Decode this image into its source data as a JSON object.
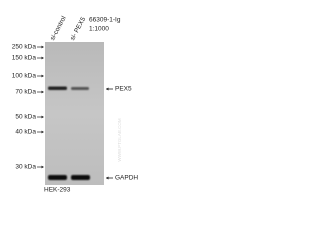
{
  "markers": [
    "250 kDa",
    "150 kDa",
    "100 kDa",
    "70 kDa",
    "50 kDa",
    "40 kDa",
    "30 kDa"
  ],
  "lanes": [
    "si-control",
    "si- PEX5"
  ],
  "antibody": [
    "66309-1-Ig",
    "1:1000"
  ],
  "bands": [
    "PEX5",
    "GAPDH"
  ],
  "cell_line": "HEK-293",
  "watermark": "WWW.PTGLAB.COM"
}
